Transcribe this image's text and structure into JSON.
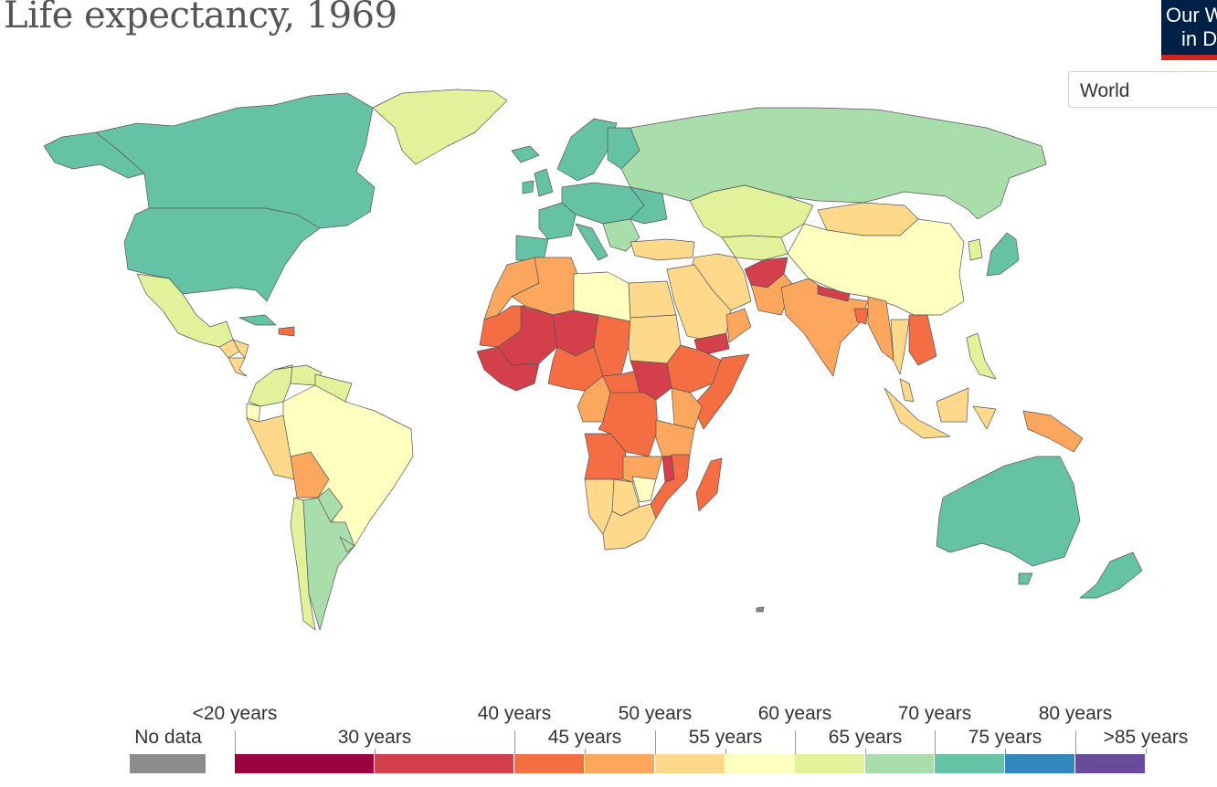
{
  "title": "Life expectancy, 1969",
  "logo": {
    "line1": "Our World",
    "line2": "in Data"
  },
  "region_selector": {
    "selected": "World"
  },
  "colors": {
    "ocean": "#ffffff",
    "border": "#555555",
    "no_data": "#8c8c8c",
    "bins": [
      "#9b0040",
      "#d33f4b",
      "#f46d43",
      "#fca75d",
      "#fed98b",
      "#ffffbf",
      "#e2f29a",
      "#a9ddab",
      "#66c2a5",
      "#3288bd",
      "#6a4c9c"
    ]
  },
  "legend": {
    "no_data_label": "No data",
    "upper_labels": [
      "<20 years",
      "40 years",
      "50 years",
      "60 years",
      "70 years",
      "80 years"
    ],
    "lower_labels": [
      "30 years",
      "45 years",
      "55 years",
      "65 years",
      "75 years",
      ">85 years"
    ]
  },
  "countries": [
    {
      "id": "canada",
      "bin": 8
    },
    {
      "id": "alaska",
      "bin": 8
    },
    {
      "id": "usa",
      "bin": 8
    },
    {
      "id": "greenland",
      "bin": 6
    },
    {
      "id": "mexico",
      "bin": 6
    },
    {
      "id": "guatemala",
      "bin": 4
    },
    {
      "id": "honduras",
      "bin": 4
    },
    {
      "id": "nicaragua",
      "bin": 4
    },
    {
      "id": "cuba",
      "bin": 8
    },
    {
      "id": "haiti",
      "bin": 2
    },
    {
      "id": "colombia",
      "bin": 6
    },
    {
      "id": "venezuela",
      "bin": 6
    },
    {
      "id": "guyana",
      "bin": 6
    },
    {
      "id": "ecuador",
      "bin": 5
    },
    {
      "id": "peru",
      "bin": 4
    },
    {
      "id": "brazil",
      "bin": 5
    },
    {
      "id": "bolivia",
      "bin": 3
    },
    {
      "id": "paraguay",
      "bin": 7
    },
    {
      "id": "chile",
      "bin": 6
    },
    {
      "id": "argentina",
      "bin": 7
    },
    {
      "id": "uruguay",
      "bin": 7
    },
    {
      "id": "iceland",
      "bin": 8
    },
    {
      "id": "uk",
      "bin": 8
    },
    {
      "id": "ireland",
      "bin": 8
    },
    {
      "id": "scandinavia",
      "bin": 8
    },
    {
      "id": "finland",
      "bin": 8
    },
    {
      "id": "france",
      "bin": 8
    },
    {
      "id": "iberia",
      "bin": 8
    },
    {
      "id": "central_europe",
      "bin": 8
    },
    {
      "id": "italy",
      "bin": 8
    },
    {
      "id": "balkans",
      "bin": 7
    },
    {
      "id": "ukraine",
      "bin": 8
    },
    {
      "id": "russia",
      "bin": 7
    },
    {
      "id": "kazakhstan",
      "bin": 6
    },
    {
      "id": "central_asia",
      "bin": 6
    },
    {
      "id": "mongolia",
      "bin": 4
    },
    {
      "id": "china",
      "bin": 5
    },
    {
      "id": "korea",
      "bin": 6
    },
    {
      "id": "japan",
      "bin": 8
    },
    {
      "id": "turkey",
      "bin": 4
    },
    {
      "id": "iran",
      "bin": 4
    },
    {
      "id": "afghanistan",
      "bin": 1
    },
    {
      "id": "pakistan",
      "bin": 3
    },
    {
      "id": "india",
      "bin": 3
    },
    {
      "id": "nepal",
      "bin": 1
    },
    {
      "id": "bangladesh",
      "bin": 2
    },
    {
      "id": "myanmar",
      "bin": 3
    },
    {
      "id": "thailand",
      "bin": 4
    },
    {
      "id": "indochina",
      "bin": 2
    },
    {
      "id": "malaysia",
      "bin": 4
    },
    {
      "id": "indonesia",
      "bin": 4
    },
    {
      "id": "philippines",
      "bin": 6
    },
    {
      "id": "papua",
      "bin": 3
    },
    {
      "id": "australia",
      "bin": 8
    },
    {
      "id": "nz",
      "bin": 8
    },
    {
      "id": "arabia",
      "bin": 4
    },
    {
      "id": "yemen",
      "bin": 1
    },
    {
      "id": "oman",
      "bin": 3
    },
    {
      "id": "morocco",
      "bin": 3
    },
    {
      "id": "algeria",
      "bin": 3
    },
    {
      "id": "libya",
      "bin": 5
    },
    {
      "id": "egypt",
      "bin": 4
    },
    {
      "id": "mauritania",
      "bin": 2
    },
    {
      "id": "mali",
      "bin": 1
    },
    {
      "id": "niger",
      "bin": 1
    },
    {
      "id": "chad",
      "bin": 2
    },
    {
      "id": "sudan",
      "bin": 4
    },
    {
      "id": "ethiopia",
      "bin": 2
    },
    {
      "id": "somalia",
      "bin": 2
    },
    {
      "id": "west_coast",
      "bin": 1
    },
    {
      "id": "nigeria",
      "bin": 2
    },
    {
      "id": "cameroon",
      "bin": 3
    },
    {
      "id": "car",
      "bin": 2
    },
    {
      "id": "south_sudan",
      "bin": 1
    },
    {
      "id": "drc",
      "bin": 2
    },
    {
      "id": "kenya",
      "bin": 3
    },
    {
      "id": "tanzania",
      "bin": 3
    },
    {
      "id": "angola",
      "bin": 2
    },
    {
      "id": "zambia",
      "bin": 3
    },
    {
      "id": "malawi",
      "bin": 1
    },
    {
      "id": "mozambique",
      "bin": 2
    },
    {
      "id": "namibia",
      "bin": 4
    },
    {
      "id": "botswana",
      "bin": 4
    },
    {
      "id": "zimbabwe",
      "bin": 5
    },
    {
      "id": "south_africa",
      "bin": 4
    },
    {
      "id": "madagascar",
      "bin": 2
    },
    {
      "id": "antarctic_islet",
      "bin": -1
    }
  ]
}
